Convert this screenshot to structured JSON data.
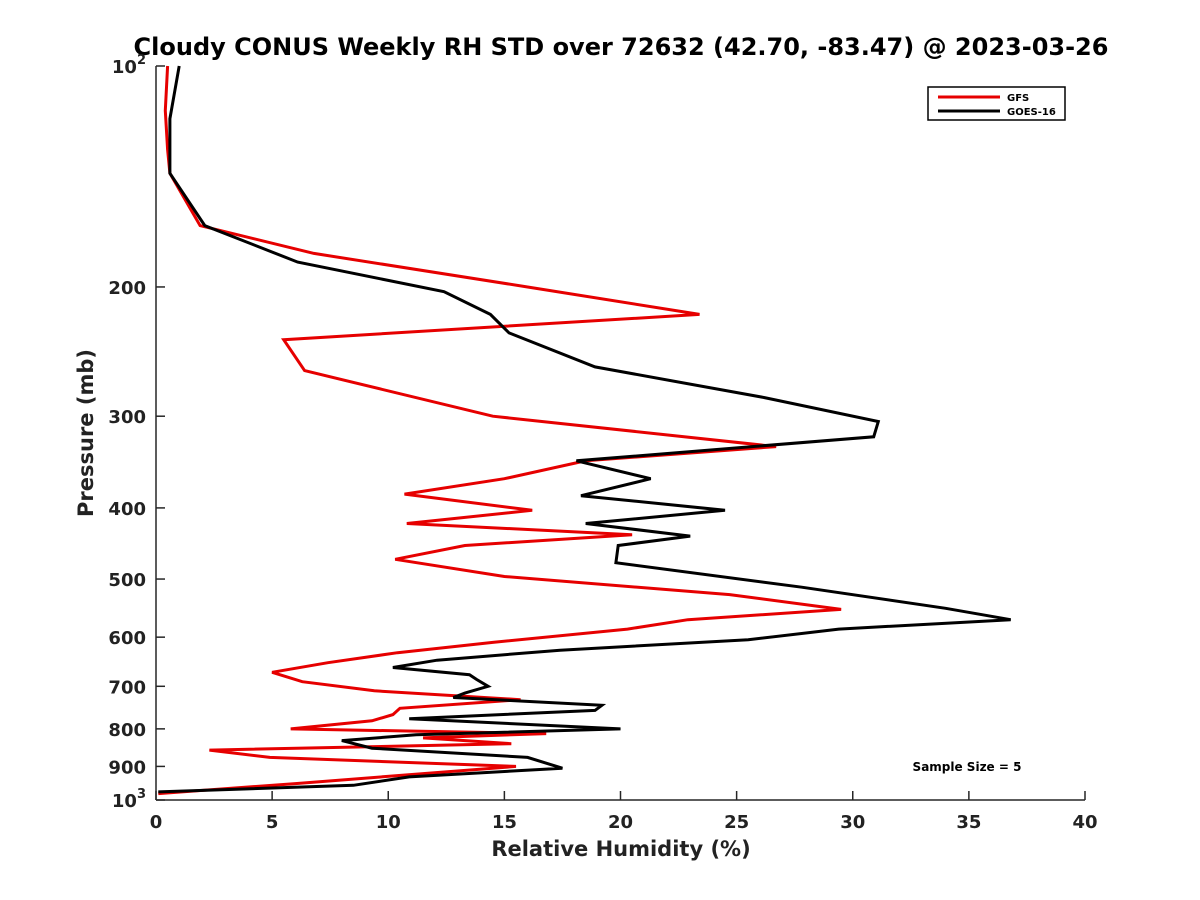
{
  "chart_data": {
    "type": "line",
    "title": "Cloudy CONUS Weekly RH STD over 72632 (42.70, -83.47) @ 2023-03-26",
    "xlabel": "Relative Humidity (%)",
    "ylabel": "Pressure (mb)",
    "xlim": [
      0,
      40
    ],
    "ylim": [
      1000,
      100
    ],
    "y_scale": "log",
    "y_reversed": true,
    "xticks": [
      0,
      5,
      10,
      15,
      20,
      25,
      30,
      35,
      40
    ],
    "yticks": [
      {
        "value": 100,
        "base": "10",
        "exp": "2"
      },
      {
        "value": 200,
        "label": "200"
      },
      {
        "value": 300,
        "label": "300"
      },
      {
        "value": 400,
        "label": "400"
      },
      {
        "value": 500,
        "label": "500"
      },
      {
        "value": 600,
        "label": "600"
      },
      {
        "value": 700,
        "label": "700"
      },
      {
        "value": 800,
        "label": "800"
      },
      {
        "value": 900,
        "label": "900"
      },
      {
        "value": 1000,
        "base": "10",
        "exp": "3"
      }
    ],
    "grid": false,
    "legend_position": "top-right",
    "annotation": "Sample Size = 5",
    "series": [
      {
        "name": "GFS",
        "color": "#e60000",
        "points": [
          [
            0.5,
            100
          ],
          [
            0.4,
            115
          ],
          [
            0.5,
            130
          ],
          [
            0.6,
            140
          ],
          [
            1.9,
            165
          ],
          [
            6.8,
            180
          ],
          [
            16,
            200
          ],
          [
            23.4,
            218
          ],
          [
            5.5,
            236
          ],
          [
            6.4,
            260
          ],
          [
            14.5,
            300
          ],
          [
            26.7,
            330
          ],
          [
            18.5,
            345
          ],
          [
            15,
            365
          ],
          [
            10.7,
            383
          ],
          [
            16.2,
            403
          ],
          [
            10.8,
            420
          ],
          [
            20.5,
            435
          ],
          [
            13.3,
            450
          ],
          [
            10.3,
            470
          ],
          [
            15,
            496
          ],
          [
            24.7,
            525
          ],
          [
            29.5,
            550
          ],
          [
            22.9,
            568
          ],
          [
            20.3,
            585
          ],
          [
            14.5,
            610
          ],
          [
            10.4,
            630
          ],
          [
            7.4,
            650
          ],
          [
            5,
            670
          ],
          [
            6.3,
            690
          ],
          [
            9.4,
            710
          ],
          [
            15.7,
            730
          ],
          [
            10.5,
            750
          ],
          [
            10.2,
            765
          ],
          [
            9.3,
            780
          ],
          [
            5.8,
            800
          ],
          [
            16.8,
            812
          ],
          [
            11.5,
            823
          ],
          [
            15.3,
            838
          ],
          [
            2.3,
            855
          ],
          [
            4.9,
            875
          ],
          [
            15.5,
            900
          ],
          [
            6,
            950
          ],
          [
            0.1,
            980
          ]
        ]
      },
      {
        "name": "GOES-16",
        "color": "#000000",
        "points": [
          [
            1,
            100
          ],
          [
            0.6,
            118
          ],
          [
            0.6,
            140
          ],
          [
            2.1,
            165
          ],
          [
            6.1,
            185
          ],
          [
            12.4,
            203
          ],
          [
            14.4,
            218
          ],
          [
            15.2,
            231
          ],
          [
            18.9,
            257
          ],
          [
            26.2,
            283
          ],
          [
            31.1,
            305
          ],
          [
            30.9,
            320
          ],
          [
            18.1,
            345
          ],
          [
            21.3,
            365
          ],
          [
            18.3,
            385
          ],
          [
            24.5,
            403
          ],
          [
            18.5,
            420
          ],
          [
            23,
            437
          ],
          [
            19.9,
            450
          ],
          [
            19.8,
            475
          ],
          [
            27.8,
            513
          ],
          [
            34,
            548
          ],
          [
            36.8,
            568
          ],
          [
            29.4,
            585
          ],
          [
            25.5,
            605
          ],
          [
            17.4,
            625
          ],
          [
            12.1,
            645
          ],
          [
            10.2,
            660
          ],
          [
            13.5,
            675
          ],
          [
            13.8,
            685
          ],
          [
            14.3,
            700
          ],
          [
            13.3,
            715
          ],
          [
            12.8,
            725
          ],
          [
            19.2,
            743
          ],
          [
            18.9,
            755
          ],
          [
            10.9,
            775
          ],
          [
            20,
            800
          ],
          [
            11.2,
            815
          ],
          [
            8,
            830
          ],
          [
            9.3,
            850
          ],
          [
            16,
            875
          ],
          [
            17.5,
            905
          ],
          [
            10.9,
            930
          ],
          [
            8.5,
            955
          ],
          [
            0.1,
            975
          ]
        ]
      }
    ]
  }
}
